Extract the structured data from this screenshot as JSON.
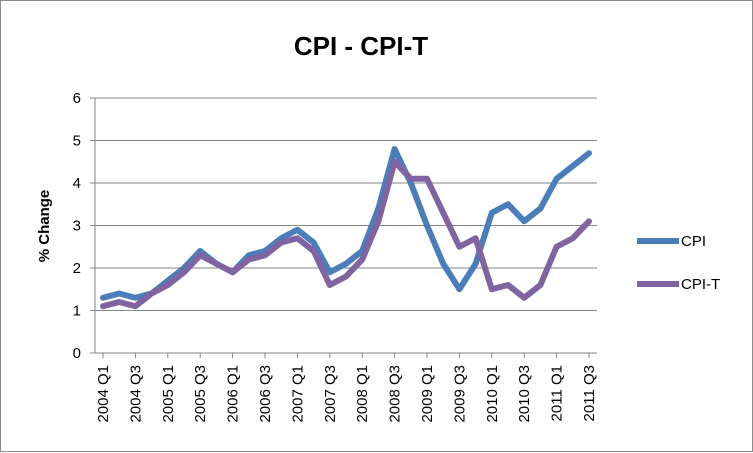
{
  "chart_data": {
    "type": "line",
    "title": "CPI - CPI-T",
    "xlabel": "",
    "ylabel": "% Change",
    "ylim": [
      0,
      6
    ],
    "yticks": [
      0,
      1,
      2,
      3,
      4,
      5,
      6
    ],
    "x": [
      "2004 Q1",
      "2004 Q2",
      "2004 Q3",
      "2004 Q4",
      "2005 Q1",
      "2005 Q2",
      "2005 Q3",
      "2005 Q4",
      "2006 Q1",
      "2006 Q2",
      "2006 Q3",
      "2006 Q4",
      "2007 Q1",
      "2007 Q2",
      "2007 Q3",
      "2007 Q4",
      "2008 Q1",
      "2008 Q2",
      "2008 Q3",
      "2008 Q4",
      "2009 Q1",
      "2009 Q2",
      "2009 Q3",
      "2009 Q4",
      "2010 Q1",
      "2010 Q2",
      "2010 Q3",
      "2010 Q4",
      "2011 Q1",
      "2011 Q2",
      "2011 Q3"
    ],
    "xtick_labels": [
      "2004 Q1",
      "2004 Q3",
      "2005 Q1",
      "2005 Q3",
      "2006 Q1",
      "2006 Q3",
      "2007 Q1",
      "2007 Q3",
      "2008 Q1",
      "2008 Q3",
      "2009 Q1",
      "2009 Q3",
      "2010 Q1",
      "2010 Q3",
      "2011 Q1",
      "2011 Q3"
    ],
    "grid": true,
    "legend_position": "right",
    "series": [
      {
        "name": "CPI",
        "color": "#4a7ebb",
        "values": [
          1.3,
          1.4,
          1.3,
          1.4,
          1.7,
          2.0,
          2.4,
          2.1,
          1.9,
          2.3,
          2.4,
          2.7,
          2.9,
          2.6,
          1.9,
          2.1,
          2.4,
          3.4,
          4.8,
          4.0,
          3.0,
          2.1,
          1.5,
          2.1,
          3.3,
          3.5,
          3.1,
          3.4,
          4.1,
          4.4,
          4.7
        ]
      },
      {
        "name": "CPI-T",
        "color": "#8064a2",
        "values": [
          1.1,
          1.2,
          1.1,
          1.4,
          1.6,
          1.9,
          2.3,
          2.1,
          1.9,
          2.2,
          2.3,
          2.6,
          2.7,
          2.4,
          1.6,
          1.8,
          2.2,
          3.1,
          4.5,
          4.1,
          4.1,
          3.3,
          2.5,
          2.7,
          1.5,
          1.6,
          1.3,
          1.6,
          2.5,
          2.7,
          3.1
        ]
      }
    ]
  }
}
